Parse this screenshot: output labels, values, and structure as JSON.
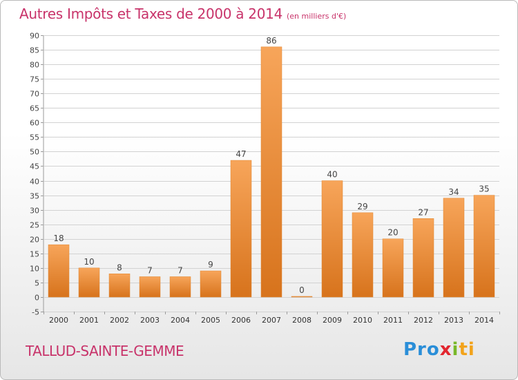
{
  "header": {
    "title": "Autres Impôts et Taxes de 2000 à 2014",
    "unit": "(en milliers d'€)"
  },
  "footer": {
    "city": "TALLUD-SAINTE-GEMME",
    "logo": [
      "Pro",
      "x",
      "i",
      "ti"
    ]
  },
  "colors": {
    "title": "#c8336a",
    "bar_light": "#f7a55a",
    "bar_dark": "#d7731c",
    "grid": "#cfcfcf"
  },
  "chart_data": {
    "type": "bar",
    "categories": [
      "2000",
      "2001",
      "2002",
      "2003",
      "2004",
      "2005",
      "2006",
      "2007",
      "2008",
      "2009",
      "2010",
      "2011",
      "2012",
      "2013",
      "2014"
    ],
    "values": [
      18,
      10,
      8,
      7,
      7,
      9,
      47,
      86,
      0,
      40,
      29,
      20,
      27,
      34,
      35
    ],
    "data_labels": [
      "18",
      "10",
      "8",
      "7",
      "7",
      "9",
      "47",
      "86",
      "0",
      "40",
      "29",
      "20",
      "27",
      "34",
      "35"
    ],
    "title": "Autres Impôts et Taxes de 2000 à 2014",
    "xlabel": "",
    "ylabel": "",
    "ylim": [
      -5,
      90
    ],
    "yticks": [
      -5,
      0,
      5,
      10,
      15,
      20,
      25,
      30,
      35,
      40,
      45,
      50,
      55,
      60,
      65,
      70,
      75,
      80,
      85,
      90
    ],
    "grid": true,
    "legend": "none"
  }
}
